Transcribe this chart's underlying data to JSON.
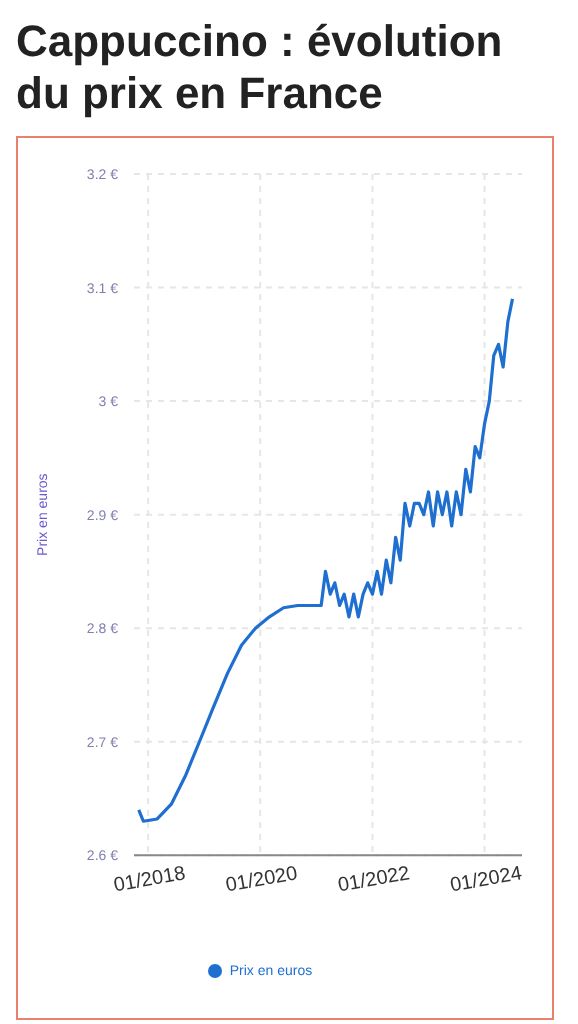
{
  "chart_data": {
    "type": "line",
    "title": "Cappuccino : évolution du prix en France",
    "ylabel": "Prix en euros",
    "x": [
      "2017-11",
      "2017-12",
      "2018-03",
      "2018-06",
      "2018-09",
      "2018-12",
      "2019-03",
      "2019-06",
      "2019-09",
      "2019-12",
      "2020-03",
      "2020-06",
      "2020-09",
      "2020-12",
      "2021-02",
      "2021-03",
      "2021-04",
      "2021-05",
      "2021-06",
      "2021-07",
      "2021-08",
      "2021-09",
      "2021-10",
      "2021-11",
      "2021-12",
      "2022-01",
      "2022-02",
      "2022-03",
      "2022-04",
      "2022-05",
      "2022-06",
      "2022-07",
      "2022-08",
      "2022-09",
      "2022-10",
      "2022-11",
      "2022-12",
      "2023-01",
      "2023-02",
      "2023-03",
      "2023-04",
      "2023-05",
      "2023-06",
      "2023-07",
      "2023-08",
      "2023-09",
      "2023-10",
      "2023-11",
      "2023-12",
      "2024-01",
      "2024-02",
      "2024-03",
      "2024-04",
      "2024-05",
      "2024-06",
      "2024-07"
    ],
    "series": [
      {
        "name": "Prix en euros",
        "color": "#1f6fd1",
        "values": [
          2.64,
          2.63,
          2.632,
          2.645,
          2.67,
          2.7,
          2.73,
          2.76,
          2.785,
          2.8,
          2.81,
          2.818,
          2.82,
          2.82,
          2.82,
          2.85,
          2.83,
          2.84,
          2.82,
          2.83,
          2.81,
          2.83,
          2.81,
          2.83,
          2.84,
          2.83,
          2.85,
          2.83,
          2.86,
          2.84,
          2.88,
          2.86,
          2.91,
          2.89,
          2.91,
          2.91,
          2.9,
          2.92,
          2.89,
          2.92,
          2.9,
          2.92,
          2.89,
          2.92,
          2.9,
          2.94,
          2.92,
          2.96,
          2.95,
          2.98,
          3.0,
          3.04,
          3.05,
          3.03,
          3.07,
          3.09
        ]
      }
    ],
    "xlim": [
      "2017-10",
      "2024-09"
    ],
    "xticks": [
      {
        "value": "2018-01",
        "label": "01/2018"
      },
      {
        "value": "2020-01",
        "label": "01/2020"
      },
      {
        "value": "2022-01",
        "label": "01/2022"
      },
      {
        "value": "2024-01",
        "label": "01/2024"
      }
    ],
    "ylim": [
      2.6,
      3.2
    ],
    "yticks": [
      {
        "value": 2.6,
        "label": "2.6 €"
      },
      {
        "value": 2.7,
        "label": "2.7 €"
      },
      {
        "value": 2.8,
        "label": "2.8 €"
      },
      {
        "value": 2.9,
        "label": "2.9 €"
      },
      {
        "value": 3,
        "label": "3 €"
      },
      {
        "value": 3.1,
        "label": "3.1 €"
      },
      {
        "value": 3.2,
        "label": "3.2 €"
      }
    ],
    "grid": true,
    "legend": "bottom",
    "line_style": "solid"
  }
}
